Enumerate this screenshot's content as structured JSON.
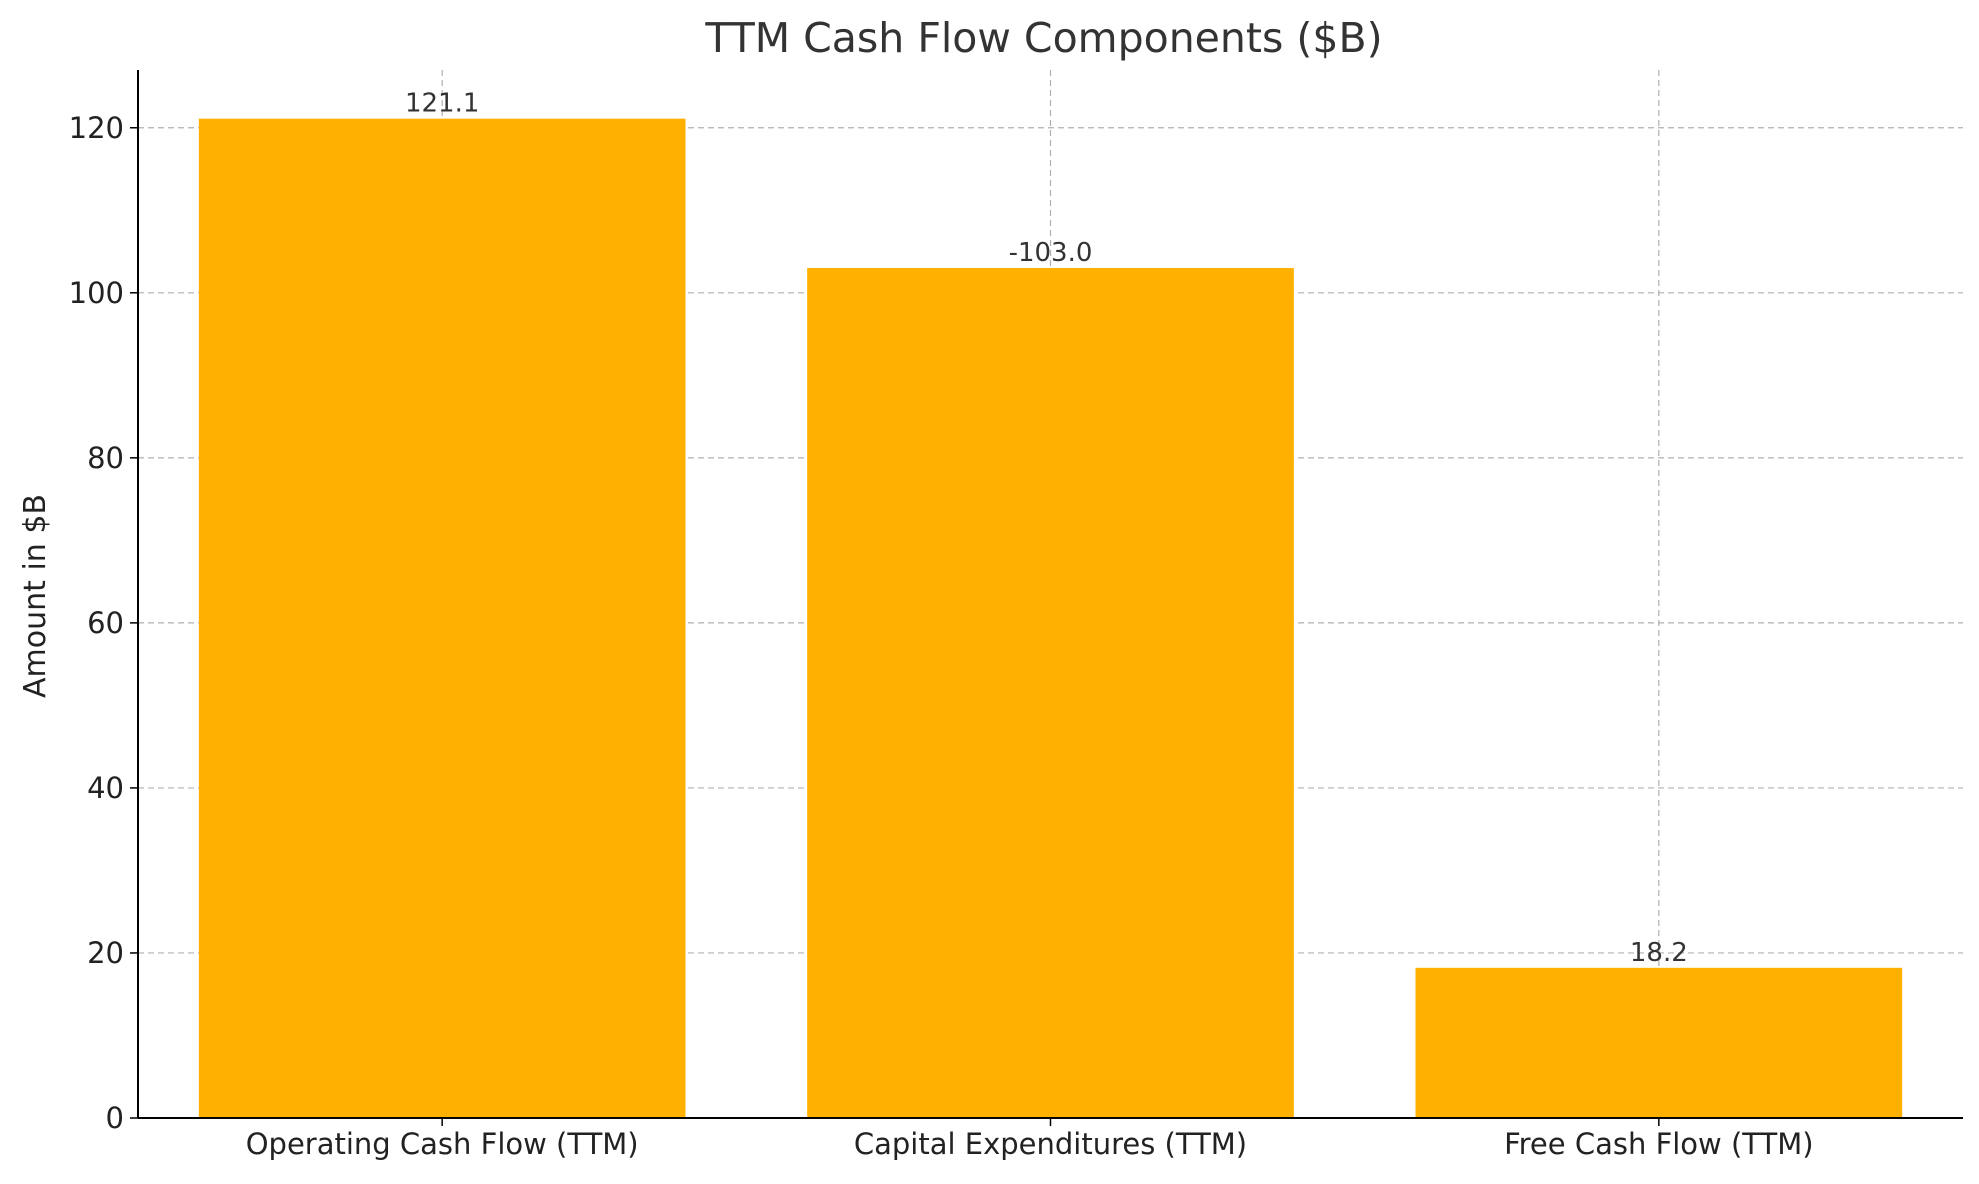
{
  "chart_data": {
    "type": "bar",
    "title": "TTM Cash Flow Components ($B)",
    "xlabel": "",
    "ylabel": "Amount in $B",
    "categories": [
      "Operating Cash Flow (TTM)",
      "Capital Expenditures (TTM)",
      "Free Cash Flow (TTM)"
    ],
    "values": [
      121.1,
      103.0,
      18.2
    ],
    "data_labels": [
      "121.1",
      "-103.0",
      "18.2"
    ],
    "ylim": [
      0,
      127
    ],
    "yticks": [
      0,
      20,
      40,
      60,
      80,
      100,
      120
    ],
    "grid": true,
    "bar_color": "#FFB000",
    "grid_color": "#b0b0b0",
    "text_color": "#333333"
  }
}
